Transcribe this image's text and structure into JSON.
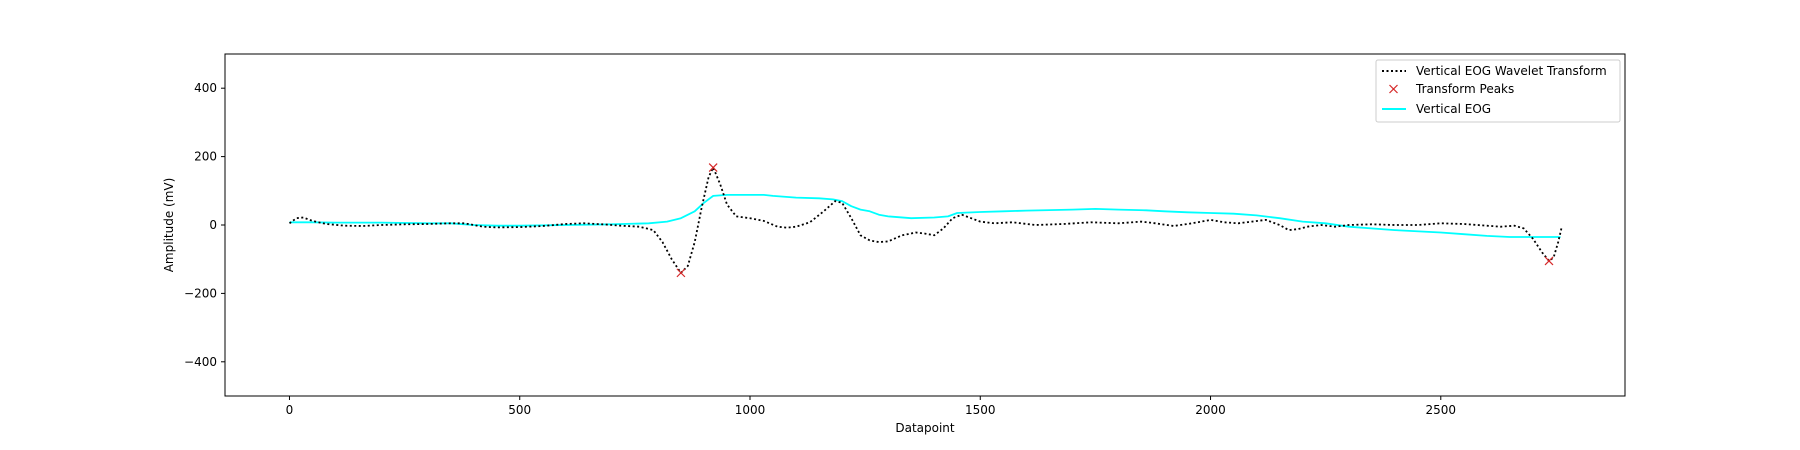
{
  "chart_data": {
    "type": "line",
    "title": "",
    "xlabel": "Datapoint",
    "ylabel": "Amplitude (mV)",
    "xlim": [
      -140,
      2900
    ],
    "ylim": [
      -500,
      500
    ],
    "xticks": [
      0,
      500,
      1000,
      1500,
      2000,
      2500
    ],
    "yticks": [
      -400,
      -200,
      0,
      200,
      400
    ],
    "xtick_labels": [
      "0",
      "500",
      "1000",
      "1500",
      "2000",
      "2500"
    ],
    "ytick_labels": [
      "−400",
      "−200",
      "0",
      "200",
      "400"
    ],
    "grid": false,
    "legend_position": "top-right",
    "series": [
      {
        "name": "Vertical EOG Wavelet Transform",
        "style": "dotted-line",
        "color": "#000000",
        "x": [
          0,
          15,
          30,
          50,
          80,
          120,
          160,
          200,
          250,
          300,
          350,
          380,
          420,
          450,
          500,
          550,
          600,
          640,
          680,
          720,
          760,
          790,
          810,
          830,
          850,
          865,
          880,
          895,
          910,
          920,
          935,
          950,
          970,
          1000,
          1030,
          1060,
          1080,
          1100,
          1130,
          1160,
          1185,
          1200,
          1220,
          1240,
          1260,
          1280,
          1300,
          1330,
          1360,
          1380,
          1400,
          1420,
          1440,
          1460,
          1480,
          1500,
          1530,
          1570,
          1620,
          1680,
          1740,
          1800,
          1850,
          1880,
          1920,
          1960,
          2000,
          2030,
          2060,
          2090,
          2120,
          2150,
          2170,
          2190,
          2210,
          2240,
          2270,
          2300,
          2350,
          2400,
          2450,
          2500,
          2550,
          2600,
          2630,
          2660,
          2680,
          2700,
          2720,
          2735,
          2745,
          2755,
          2762
        ],
        "y": [
          5,
          20,
          22,
          12,
          3,
          -2,
          -3,
          0,
          2,
          3,
          5,
          5,
          -5,
          -7,
          -6,
          -3,
          3,
          5,
          2,
          -2,
          -5,
          -15,
          -50,
          -100,
          -140,
          -120,
          -50,
          50,
          140,
          168,
          120,
          60,
          25,
          20,
          12,
          -5,
          -8,
          -5,
          8,
          40,
          70,
          65,
          20,
          -30,
          -45,
          -50,
          -48,
          -30,
          -22,
          -25,
          -30,
          -10,
          20,
          30,
          20,
          10,
          5,
          8,
          0,
          3,
          8,
          5,
          10,
          5,
          -3,
          5,
          15,
          8,
          5,
          10,
          15,
          0,
          -15,
          -12,
          -5,
          0,
          -5,
          0,
          2,
          0,
          0,
          5,
          3,
          -2,
          -5,
          -2,
          -10,
          -40,
          -80,
          -105,
          -95,
          -50,
          -10
        ]
      },
      {
        "name": "Transform Peaks",
        "style": "markers-x",
        "color": "#d62728",
        "x": [
          850,
          920,
          2735
        ],
        "y": [
          -140,
          168,
          -105
        ]
      },
      {
        "name": "Vertical EOG",
        "style": "solid-line",
        "color": "#00ffff",
        "x": [
          0,
          50,
          100,
          200,
          300,
          350,
          400,
          450,
          500,
          600,
          700,
          780,
          820,
          850,
          880,
          900,
          920,
          950,
          1000,
          1030,
          1050,
          1100,
          1150,
          1180,
          1200,
          1220,
          1240,
          1260,
          1280,
          1300,
          1350,
          1400,
          1430,
          1450,
          1500,
          1550,
          1600,
          1700,
          1750,
          1800,
          1860,
          1900,
          1950,
          2000,
          2050,
          2100,
          2150,
          2200,
          2250,
          2300,
          2400,
          2500,
          2550,
          2600,
          2650,
          2700,
          2740,
          2760
        ],
        "y": [
          8,
          8,
          7,
          7,
          5,
          5,
          0,
          -2,
          -2,
          0,
          2,
          5,
          10,
          20,
          40,
          65,
          85,
          88,
          88,
          88,
          85,
          80,
          78,
          75,
          70,
          55,
          45,
          40,
          30,
          25,
          20,
          22,
          25,
          35,
          38,
          40,
          42,
          45,
          47,
          45,
          43,
          40,
          37,
          35,
          33,
          28,
          20,
          10,
          5,
          -5,
          -15,
          -22,
          -27,
          -32,
          -35,
          -35,
          -35,
          -35
        ]
      }
    ]
  }
}
